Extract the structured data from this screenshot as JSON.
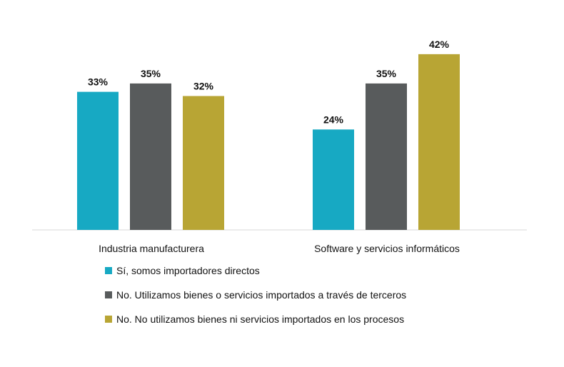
{
  "chart_data": {
    "type": "bar",
    "title": "",
    "xlabel": "",
    "ylabel": "",
    "ylim": [
      0,
      45
    ],
    "grid": false,
    "legend_position": "bottom",
    "categories": [
      "Industria manufacturera",
      "Software y servicios informáticos"
    ],
    "series": [
      {
        "name": "Sí, somos importadores directos",
        "values": [
          33,
          24
        ],
        "labels": [
          "33%",
          "24%"
        ],
        "color": "#17a9c3"
      },
      {
        "name": "No. Utilizamos bienes o servicios importados a través de terceros",
        "values": [
          35,
          35
        ],
        "labels": [
          "35%",
          "35%"
        ],
        "color": "#585b5c"
      },
      {
        "name": "No. No utilizamos bienes ni servicios importados en los procesos",
        "values": [
          32,
          42
        ],
        "labels": [
          "32%",
          "42%"
        ],
        "color": "#b8a534"
      }
    ]
  }
}
